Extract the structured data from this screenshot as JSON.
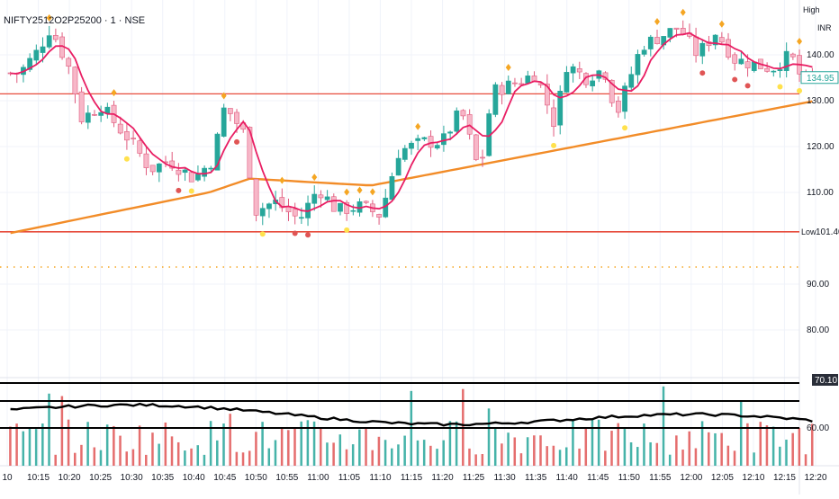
{
  "header": {
    "symbol": "NIFTY2512O2P25200 · 1 · NSE",
    "currency": "INR"
  },
  "price_axis": {
    "high_label": "High",
    "low_label": "Low",
    "low_value": "101.40",
    "last_value": "134.95",
    "ticks": [
      "140.00",
      "130.00",
      "120.00",
      "110.00",
      "90.00",
      "80.00",
      "60.00"
    ]
  },
  "oscillator": {
    "value_label": "70.10",
    "levels": [
      70,
      66,
      60
    ]
  },
  "colors": {
    "up": "#26a69a",
    "down": "#f7b7c8",
    "down_border": "#e05a7d",
    "ma_fast": "#e91e63",
    "ma_slow": "#f28c28",
    "level_line": "#e74c3c",
    "sell_marker": "#f5a623",
    "buy_marker": "#e05555",
    "yellow_marker": "#ffe14d"
  },
  "chart_data": {
    "type": "candlestick",
    "x_ticks": [
      "10",
      "10:15",
      "10:20",
      "10:25",
      "10:30",
      "10:35",
      "10:40",
      "10:45",
      "10:50",
      "10:55",
      "11:00",
      "11:05",
      "11:10",
      "11:15",
      "11:20",
      "11:25",
      "11:30",
      "11:35",
      "11:40",
      "11:45",
      "11:50",
      "11:55",
      "12:00",
      "12:05",
      "12:10",
      "12:15",
      "12:20"
    ],
    "ylim": [
      73,
      149
    ],
    "series": [
      {
        "name": "Price",
        "kind": "candles",
        "key_points": [
          {
            "t": "10:12",
            "close": 136
          },
          {
            "t": "10:15",
            "close": 141
          },
          {
            "t": "10:17",
            "close": 146
          },
          {
            "t": "10:20",
            "close": 137
          },
          {
            "t": "10:22",
            "close": 126
          },
          {
            "t": "10:25",
            "close": 129
          },
          {
            "t": "10:28",
            "close": 124
          },
          {
            "t": "10:30",
            "close": 121
          },
          {
            "t": "10:33",
            "close": 115
          },
          {
            "t": "10:36",
            "close": 117
          },
          {
            "t": "10:40",
            "close": 113
          },
          {
            "t": "10:43",
            "close": 117
          },
          {
            "t": "10:45",
            "close": 129
          },
          {
            "t": "10:48",
            "close": 123
          },
          {
            "t": "10:50",
            "close": 106
          },
          {
            "t": "10:53",
            "close": 108
          },
          {
            "t": "10:57",
            "close": 104
          },
          {
            "t": "11:00",
            "close": 111
          },
          {
            "t": "11:03",
            "close": 106
          },
          {
            "t": "11:07",
            "close": 107
          },
          {
            "t": "11:10",
            "close": 105
          },
          {
            "t": "11:13",
            "close": 119
          },
          {
            "t": "11:17",
            "close": 121
          },
          {
            "t": "11:20",
            "close": 121
          },
          {
            "t": "11:23",
            "close": 128
          },
          {
            "t": "11:26",
            "close": 114
          },
          {
            "t": "11:28",
            "close": 132
          },
          {
            "t": "11:32",
            "close": 134
          },
          {
            "t": "11:35",
            "close": 136
          },
          {
            "t": "11:38",
            "close": 125
          },
          {
            "t": "11:40",
            "close": 138
          },
          {
            "t": "11:43",
            "close": 135
          },
          {
            "t": "11:46",
            "close": 137
          },
          {
            "t": "11:48",
            "close": 127
          },
          {
            "t": "11:52",
            "close": 142
          },
          {
            "t": "11:55",
            "close": 144
          },
          {
            "t": "11:58",
            "close": 146
          },
          {
            "t": "12:01",
            "close": 140
          },
          {
            "t": "12:04",
            "close": 145
          },
          {
            "t": "12:07",
            "close": 139
          },
          {
            "t": "12:10",
            "close": 138
          },
          {
            "t": "12:13",
            "close": 137
          },
          {
            "t": "12:16",
            "close": 140
          },
          {
            "t": "12:18",
            "close": 134
          },
          {
            "t": "12:21",
            "close": 134.95
          }
        ]
      },
      {
        "name": "MA fast",
        "kind": "line",
        "color": "#e91e63"
      },
      {
        "name": "MA slow",
        "kind": "line",
        "color": "#f28c28"
      }
    ],
    "horizontal_levels": [
      131.5,
      101.4
    ],
    "volume_panel": {
      "kind": "bars",
      "colors": [
        "#26a69a",
        "#e05555"
      ]
    },
    "oscillator_panel": {
      "last": 70.1,
      "lines": [
        70,
        66,
        60
      ]
    }
  }
}
